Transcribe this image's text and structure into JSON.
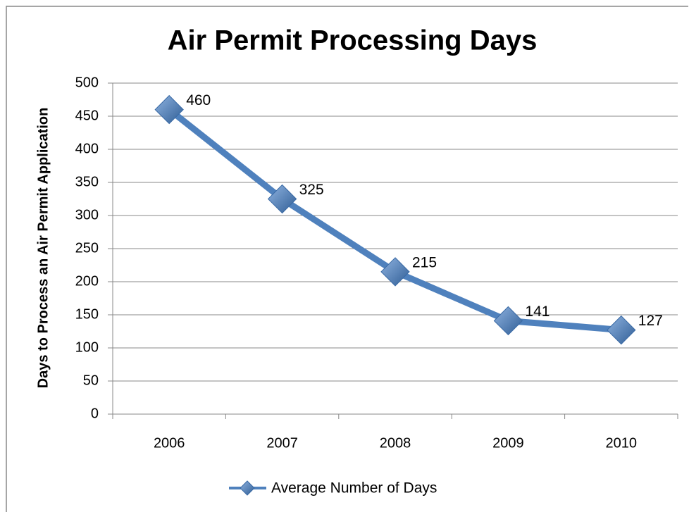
{
  "chart_data": {
    "type": "line",
    "title": "Air Permit Processing Days",
    "y_label": "Days to Process an Air Permit Application",
    "categories": [
      "2006",
      "2007",
      "2008",
      "2009",
      "2010"
    ],
    "series": [
      {
        "name": "Average Number of Days",
        "color": "#4f81bd",
        "values": [
          460,
          325,
          215,
          141,
          127
        ]
      }
    ],
    "ylim": [
      0,
      500
    ],
    "yticks": [
      0,
      50,
      100,
      150,
      200,
      250,
      300,
      350,
      400,
      450,
      500
    ],
    "grid": true,
    "legend": "bottom",
    "data_labels": true
  }
}
